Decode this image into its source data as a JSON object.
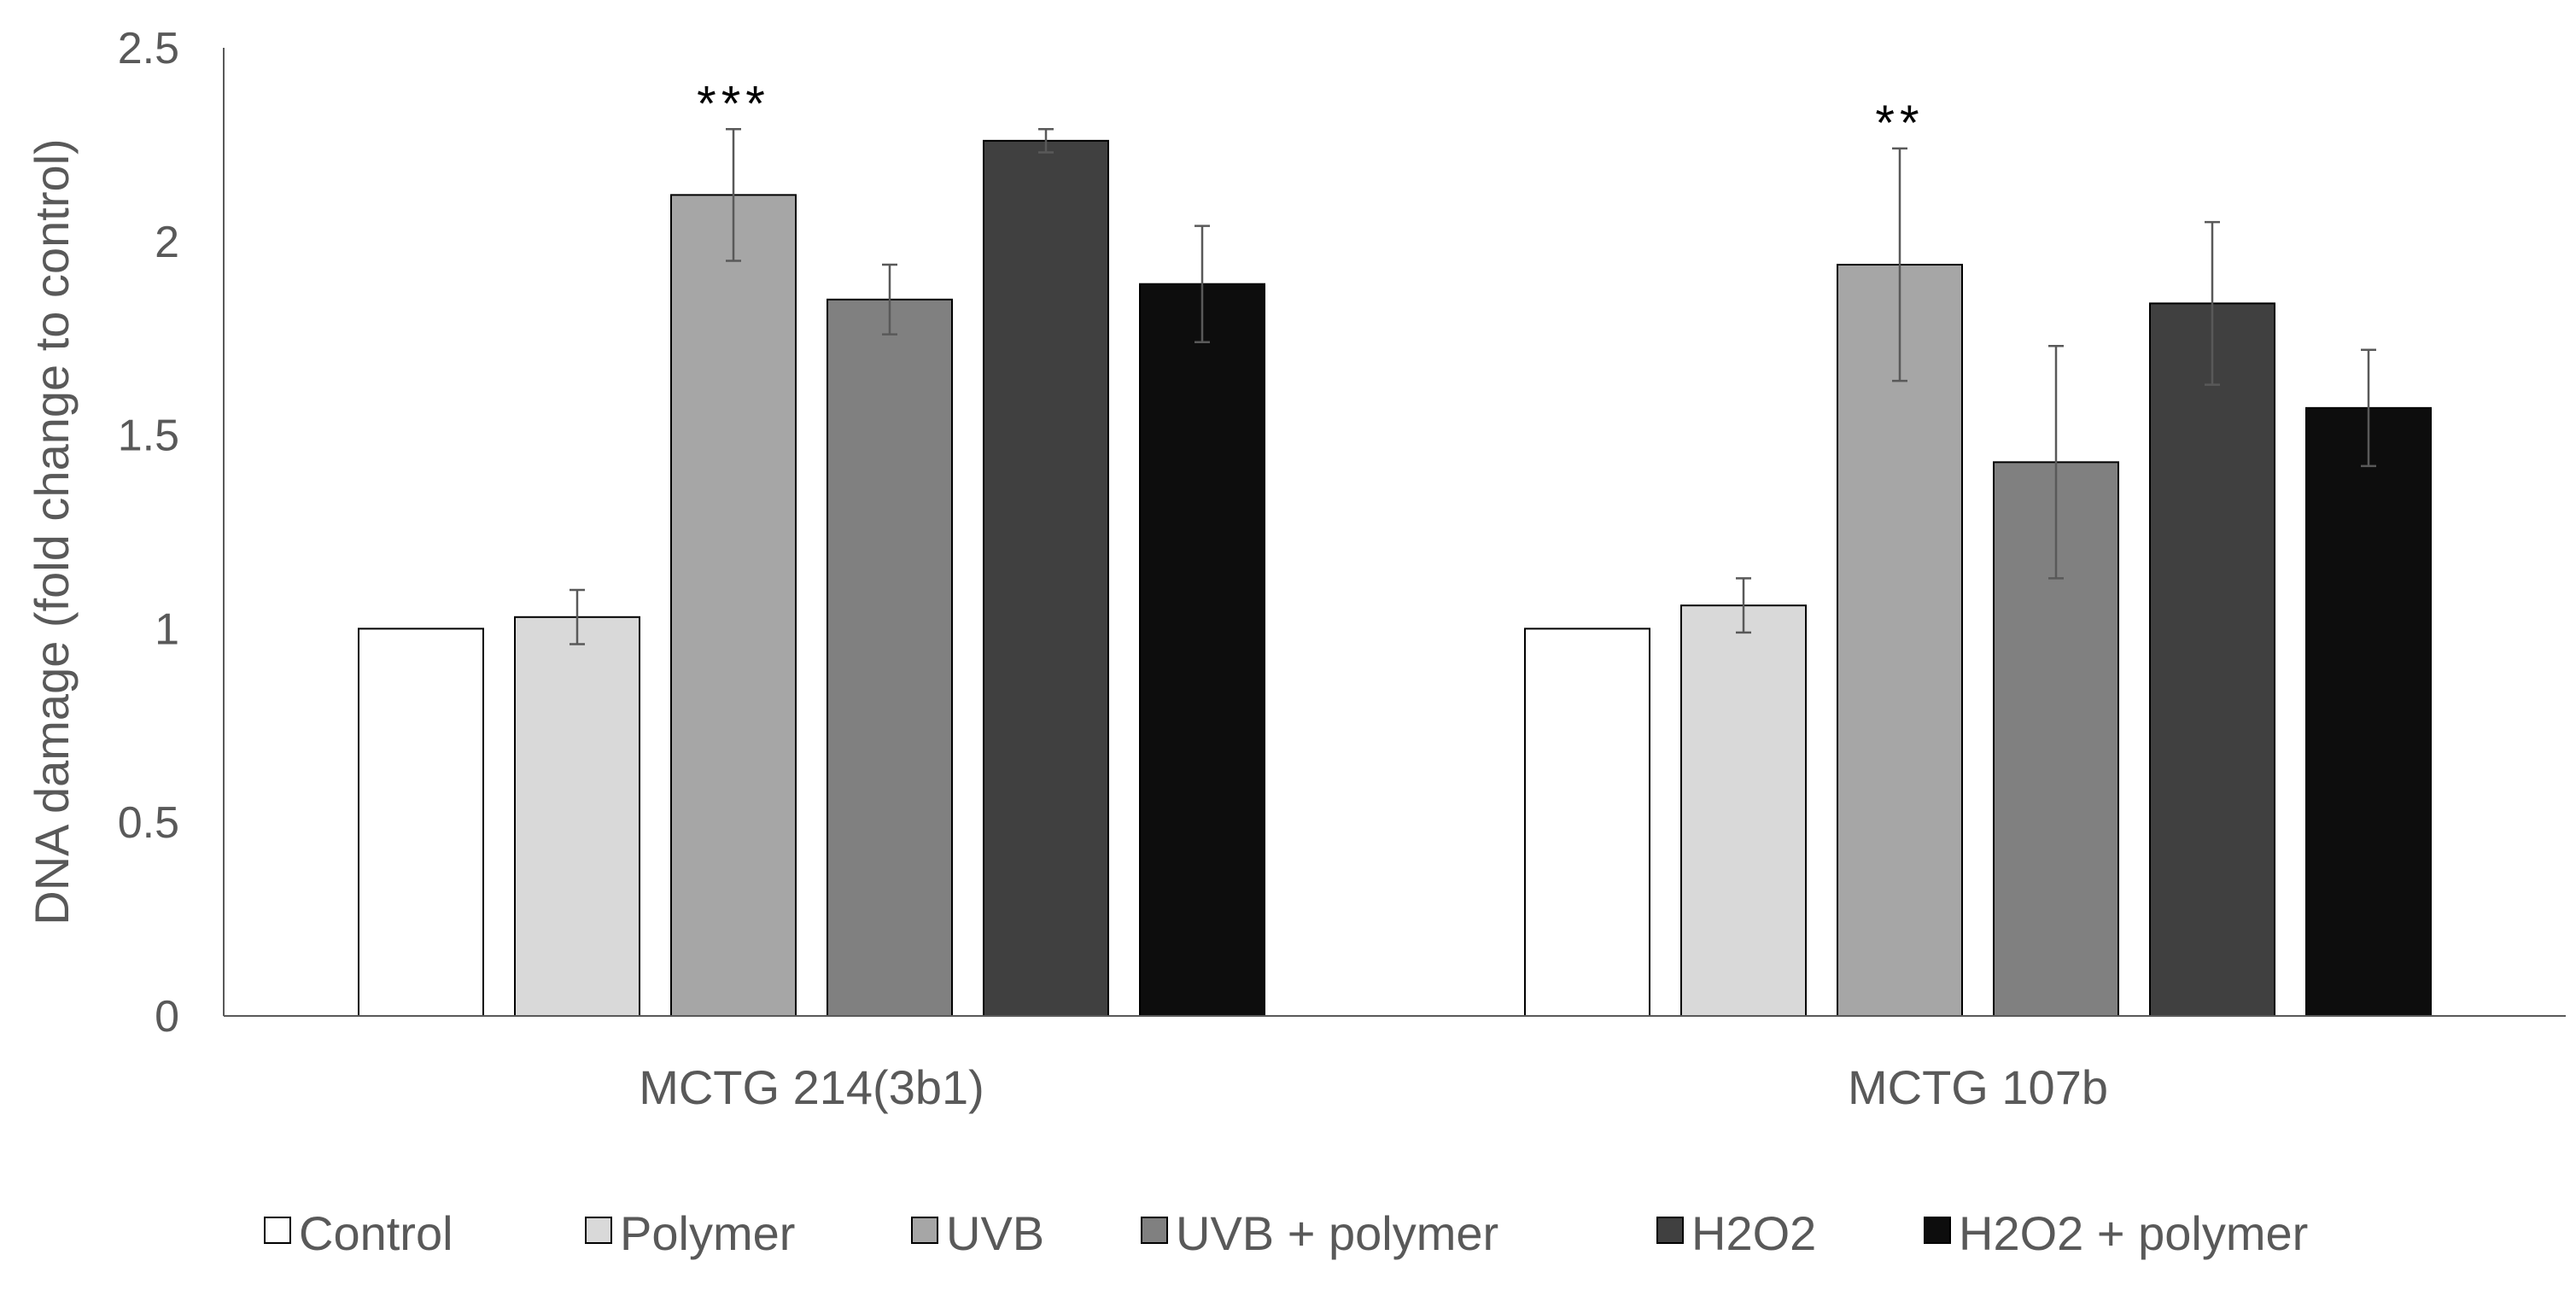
{
  "chart_data": {
    "type": "bar",
    "title": "",
    "xlabel": "",
    "ylabel": "DNA damage (fold change to control)",
    "ylim": [
      0,
      2.5
    ],
    "yticks": [
      "0",
      "0.5",
      "1",
      "1.5",
      "2",
      "2.5"
    ],
    "ytick_values": [
      0,
      0.5,
      1,
      1.5,
      2,
      2.5
    ],
    "grid": false,
    "legend_position": "bottom",
    "categories": [
      "MCTG 214(3b1)",
      "MCTG 107b"
    ],
    "series": [
      {
        "name": "Control",
        "color": "#ffffff",
        "values": [
          1.0,
          1.0
        ],
        "errors": [
          0,
          0
        ]
      },
      {
        "name": "Polymer",
        "color": "#d9d9d9",
        "values": [
          1.03,
          1.06
        ],
        "errors": [
          0.07,
          0.07
        ]
      },
      {
        "name": "UVB",
        "color": "#a6a6a6",
        "values": [
          2.12,
          1.94
        ],
        "errors": [
          0.17,
          0.3
        ]
      },
      {
        "name": "UVB + polymer",
        "color": "#808080",
        "values": [
          1.85,
          1.43
        ],
        "errors": [
          0.09,
          0.3
        ]
      },
      {
        "name": "H2O2",
        "color": "#404040",
        "values": [
          2.26,
          1.84
        ],
        "errors": [
          0.03,
          0.21
        ]
      },
      {
        "name": "H2O2 + polymer",
        "color": "#0d0d0d",
        "values": [
          1.89,
          1.57
        ],
        "errors": [
          0.15,
          0.15
        ]
      }
    ],
    "annotations": [
      {
        "text": "***",
        "category_index": 0,
        "series_index": 2
      },
      {
        "text": "**",
        "category_index": 1,
        "series_index": 2
      }
    ]
  }
}
